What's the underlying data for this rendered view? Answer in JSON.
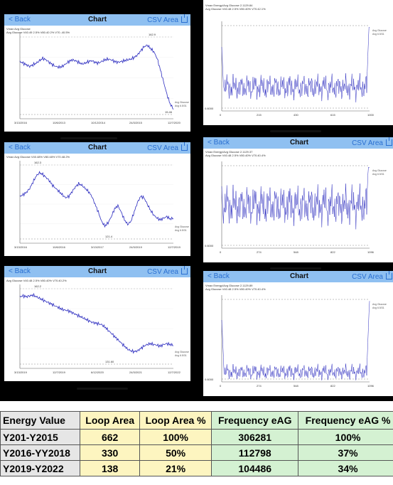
{
  "screens": [
    {
      "id": "s1",
      "nav": {
        "back": "< Back",
        "title": "Chart",
        "right": "CSV Area"
      },
      "stats": [
        "Vmax Avg Glucose",
        "Avg Glucose V40.49 2.5% V80.40 2% V70..40.5%"
      ],
      "yticks": [
        "",
        "",
        "",
        "",
        ""
      ],
      "xticks": [
        "3/13/2016",
        "10/6/2013",
        "10/12/2014",
        "24/3/2015",
        "12/7/2020"
      ],
      "labels": [
        "162.9 ",
        "15.46"
      ],
      "legend": [
        "Avg Glucose",
        "Avg 6.5/31"
      ],
      "series": [
        70,
        68,
        66,
        64,
        66,
        68,
        71,
        74,
        72,
        69,
        66,
        64,
        63,
        64,
        67,
        70,
        72,
        71,
        69,
        67,
        68,
        70,
        71,
        69,
        68,
        70,
        72,
        73,
        72,
        70,
        69,
        70,
        71,
        72,
        73,
        75,
        78,
        83,
        88,
        90,
        86,
        82,
        74,
        60,
        45,
        30,
        18,
        12
      ]
    },
    {
      "id": "s2",
      "nav": {
        "back": "< Back",
        "title": "Chart",
        "right": "CSV Area"
      },
      "stats": [
        "Vmax Avg Glucose V40.48% V80.48% V70.48.2%"
      ],
      "yticks": [
        "",
        "",
        "",
        "",
        ""
      ],
      "xticks": [
        "3/13/2016",
        "10/6/2016",
        "3/13/2017",
        "24/3/2019",
        "12/7/2019"
      ],
      "labels": [
        "162.3",
        "",
        "121.4"
      ],
      "legend": [
        "Avg Glucose",
        "Avg 6.5/31"
      ],
      "series": [
        60,
        62,
        65,
        70,
        78,
        86,
        90,
        88,
        84,
        80,
        74,
        70,
        66,
        62,
        58,
        60,
        66,
        72,
        76,
        74,
        70,
        66,
        60,
        50,
        40,
        28,
        22,
        26,
        34,
        44,
        48,
        40,
        30,
        24,
        28,
        40,
        52,
        60,
        58,
        50,
        42,
        36,
        32,
        30,
        32,
        34,
        31,
        32
      ]
    },
    {
      "id": "s3",
      "nav": {
        "back": "< Back",
        "title": "Chart",
        "right": "CSV Area"
      },
      "stats": [
        "Avg Glucose V40.48 2.5% V80.40% V70.40.2%"
      ],
      "yticks": [
        "",
        "",
        "",
        "",
        ""
      ],
      "xticks": [
        "3/13/2019",
        "12/7/2019",
        "6/12/2020",
        "24/3/2021",
        "12/7/2022"
      ],
      "labels": [
        "162.2",
        "131.60"
      ],
      "legend": [
        "Avg Glucose",
        "Avg 6.5/31"
      ],
      "series": [
        90,
        91,
        90,
        91,
        92,
        90,
        88,
        86,
        84,
        82,
        80,
        78,
        76,
        74,
        73,
        72,
        70,
        68,
        66,
        64,
        62,
        60,
        58,
        57,
        56,
        55,
        52,
        48,
        44,
        40,
        36,
        32,
        28,
        24,
        22,
        21,
        22,
        25,
        28,
        30,
        31,
        30,
        29,
        28,
        30,
        31,
        30,
        29
      ]
    },
    {
      "id": "s4",
      "nav": {
        "back": "",
        "title": "",
        "right": ""
      },
      "stats": [
        "Vmax Energy/Avg Glucose 2.1129.84",
        "Avg Glucose V40.48 2.5% V80.40% V70.42.1%"
      ],
      "yticks": [
        "",
        "",
        "",
        "",
        ""
      ],
      "xticks": [
        "0",
        "215",
        "430",
        "615",
        "1000"
      ],
      "labels": [
        "",
        "",
        "0.6000"
      ],
      "legend": [
        "Avg Glucose",
        "Avg 6.5/31"
      ],
      "series": []
    },
    {
      "id": "s5",
      "nav": {
        "back": "< Back",
        "title": "Chart",
        "right": "CSV Area"
      },
      "stats": [
        "Vmax Energy/Avg Glucose 2.1129.37",
        "Avg Glucose V40.48 2.5% V80.40% V70.40.4%"
      ],
      "yticks": [
        "",
        "",
        "",
        "",
        ""
      ],
      "xticks": [
        "0",
        "274",
        "548",
        "822",
        "1096"
      ],
      "labels": [
        "",
        "0.6000"
      ],
      "legend": [
        "Avg Glucose",
        "Avg 6.5/31"
      ],
      "series": []
    },
    {
      "id": "s6",
      "nav": {
        "back": "< Back",
        "title": "Chart",
        "right": "CSV Area"
      },
      "stats": [
        "Vmax Energy/Avg Glucose 2.1129.89",
        "Avg Glucose V40.48 2.5% V80.40% V70.40.4%"
      ],
      "yticks": [
        "",
        "",
        "",
        "",
        ""
      ],
      "xticks": [
        "0",
        "274",
        "548",
        "822",
        "1096"
      ],
      "labels": [
        "",
        "0.6000"
      ],
      "legend": [
        "Avg Glucose",
        "Avg 6.5/31"
      ],
      "series": []
    }
  ],
  "table": {
    "headers": [
      "Energy Value",
      "Loop Area",
      "Loop Area %",
      "Frequency eAG",
      "Frequency eAG %"
    ],
    "rows": [
      [
        "Y201-Y2015",
        "662",
        "100%",
        "306281",
        "100%"
      ],
      [
        "Y2016-YY2018",
        "330",
        "50%",
        "112798",
        "37%"
      ],
      [
        "Y2019-Y2022",
        "138",
        "21%",
        "104486",
        "34%"
      ]
    ]
  },
  "colors": {
    "line": "#2b2bbf",
    "nav": "#8fc0f1",
    "yellow": "#fdf5c0",
    "green": "#d4f1d2",
    "grey": "#e6e6e6"
  }
}
